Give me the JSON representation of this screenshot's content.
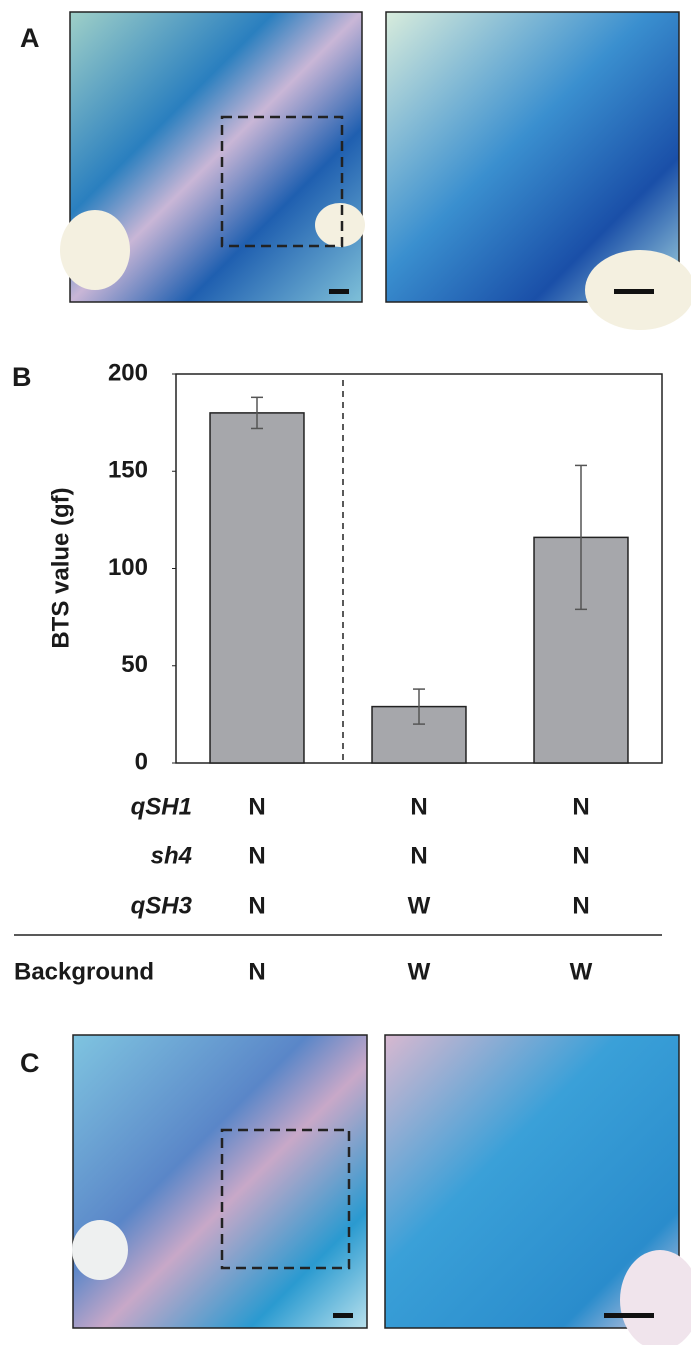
{
  "panels": [
    "A",
    "B",
    "C"
  ],
  "chart_data": {
    "type": "bar",
    "ylabel": "BTS value (gf)",
    "categories": [
      null,
      null,
      null
    ],
    "values": [
      180,
      29,
      116
    ],
    "errors": [
      8,
      9,
      37
    ],
    "color": "#a6a7ab",
    "ylim": [
      0,
      200
    ],
    "yticks": [
      0,
      50,
      100,
      150,
      200
    ],
    "grid": false
  },
  "genotype_table": {
    "rows": [
      {
        "label": "qSH1",
        "values": [
          "N",
          "N",
          "N"
        ]
      },
      {
        "label": "sh4",
        "values": [
          "N",
          "N",
          "N"
        ]
      },
      {
        "label": "qSH3",
        "values": [
          "N",
          "W",
          "N"
        ]
      },
      {
        "label": "Background",
        "values": [
          "N",
          "W",
          "W"
        ]
      }
    ]
  }
}
